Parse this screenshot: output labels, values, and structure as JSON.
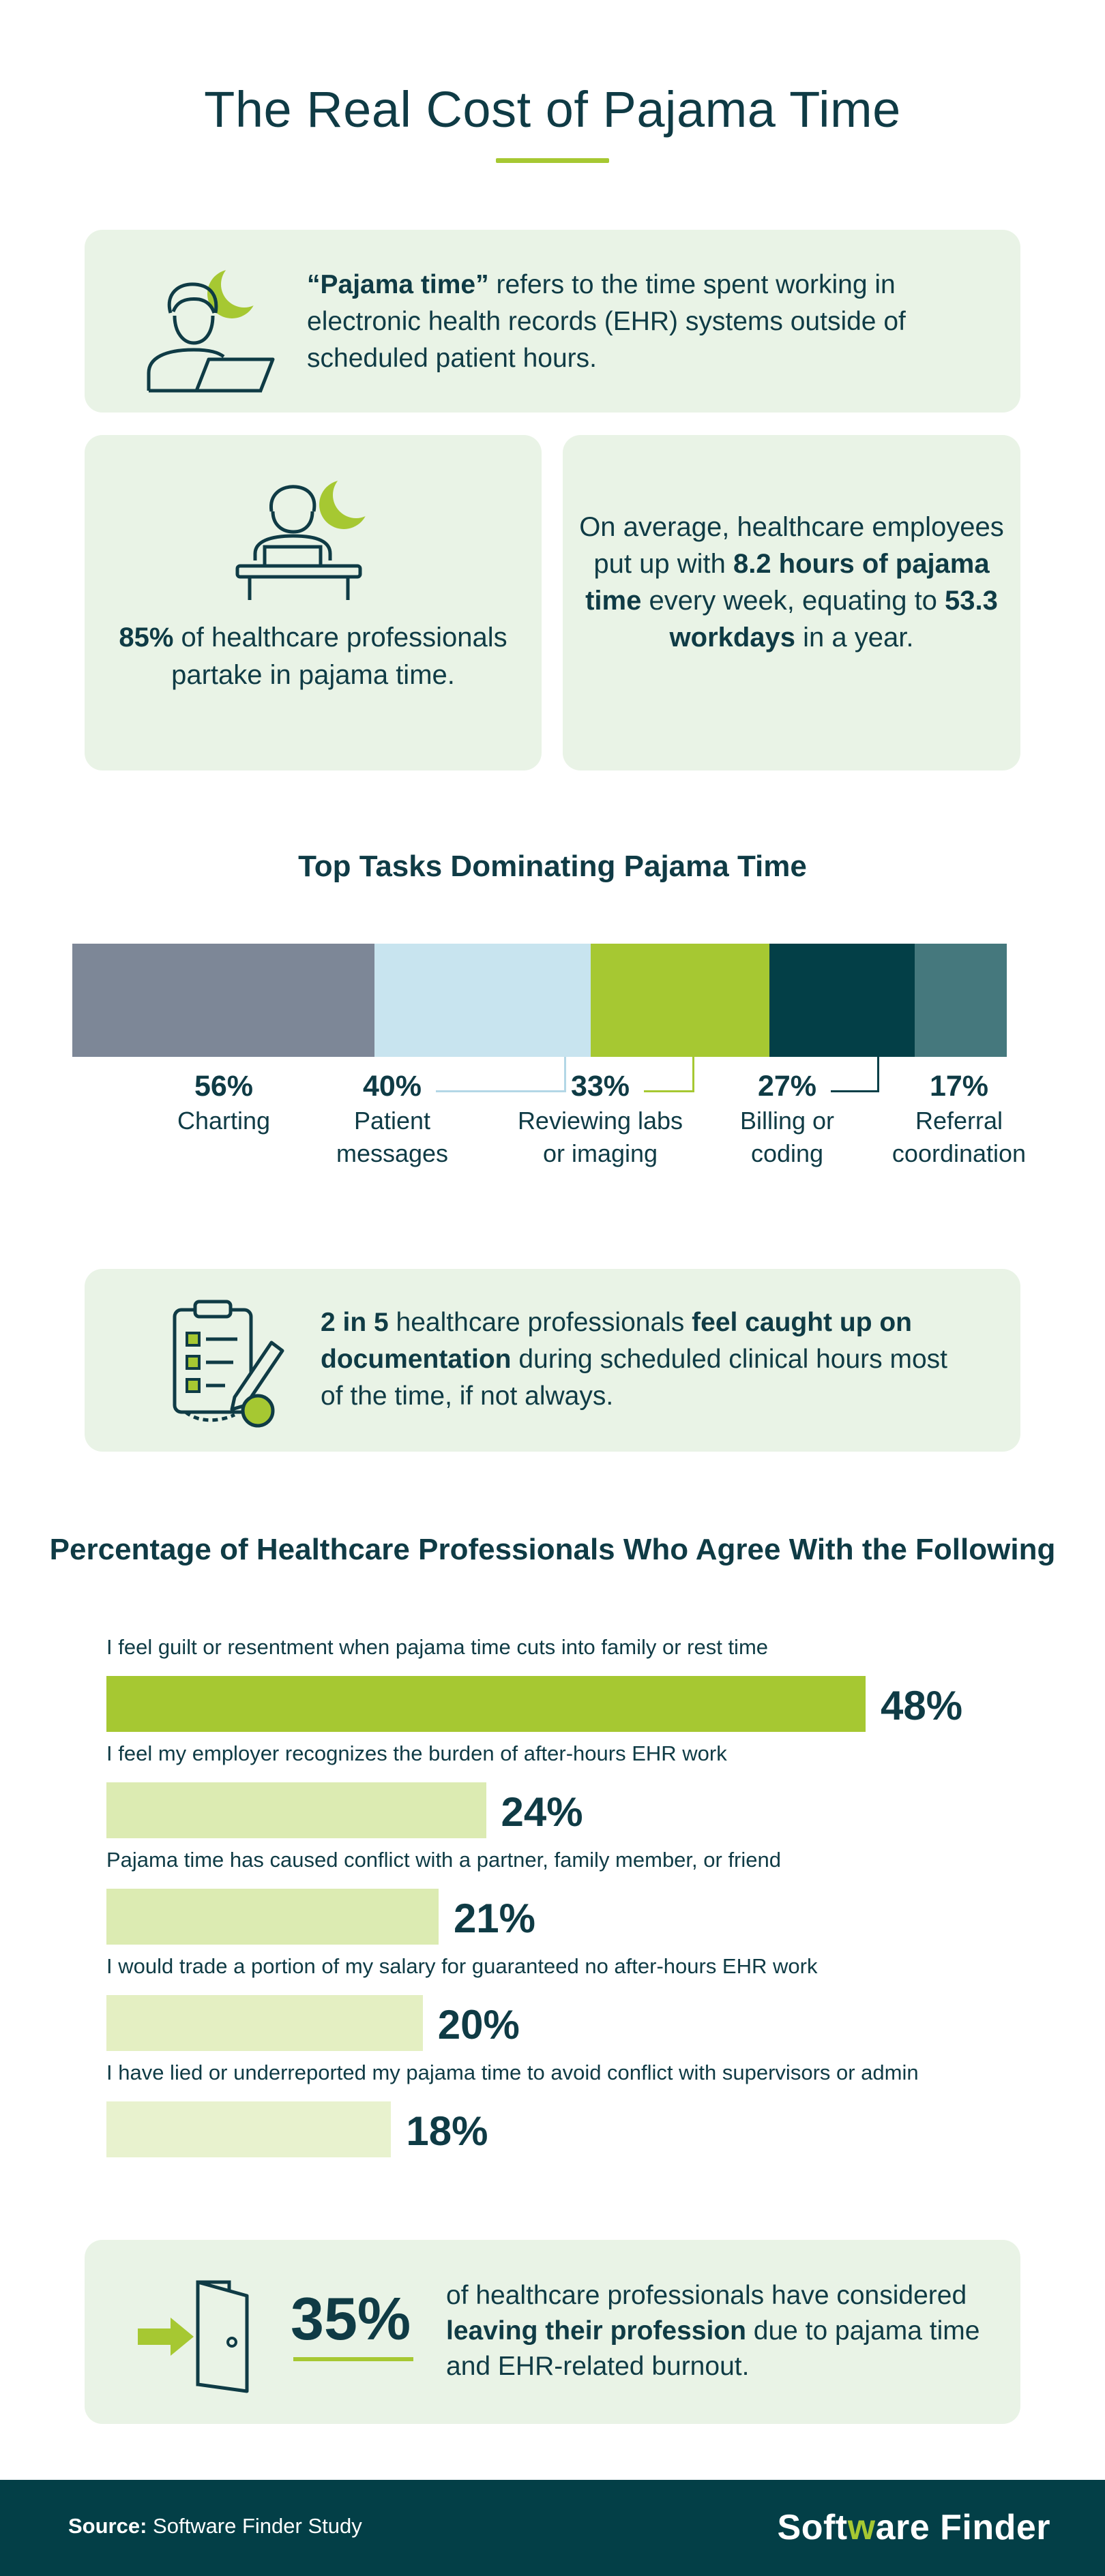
{
  "title": "The Real Cost of Pajama Time",
  "definition": {
    "term": "“Pajama time”",
    "text": " refers to the time spent working in electronic health records (EHR) systems outside of scheduled patient hours."
  },
  "stat_85": {
    "value": "85%",
    "text": " of healthcare professionals partake in pajama time."
  },
  "stat_avg": {
    "part1": "On average, healthcare employees put up with ",
    "bold1": "8.2 hours of pajama time",
    "part2": " every week, equating to ",
    "bold2": "53.3 workdays",
    "part3": " in a year."
  },
  "colors": {
    "green": "#a6c832",
    "dark_teal": "#033f47",
    "card_bg": "#e9f3e6",
    "text": "#0f3b45"
  },
  "doc_stat": {
    "bold1": "2 in 5",
    "part1": " healthcare professionals ",
    "bold2": "feel caught up on documentation",
    "part2": " during scheduled clinical hours most of the time, if not always."
  },
  "leave_stat": {
    "value": "35%",
    "part1": "of healthcare professionals have considered ",
    "bold": "leaving their profession",
    "part2": " due to pajama time and EHR-related burnout."
  },
  "chart_data": [
    {
      "type": "bar",
      "title": "Top Tasks Dominating Pajama Time",
      "categories": [
        "Charting",
        "Patient messages",
        "Reviewing labs or imaging",
        "Billing or coding",
        "Referral coordination"
      ],
      "values": [
        56,
        40,
        33,
        27,
        17
      ],
      "value_labels": [
        "56%",
        "40%",
        "33%",
        "27%",
        "17%"
      ],
      "label_lines": [
        [
          "Charting"
        ],
        [
          "Patient",
          "messages"
        ],
        [
          "Reviewing labs",
          "or imaging"
        ],
        [
          "Billing or",
          "coding"
        ],
        [
          "Referral",
          "coordination"
        ]
      ],
      "colors": [
        "#7d8797",
        "#c8e4ef",
        "#a6c832",
        "#033f47",
        "#45787d"
      ],
      "leader_colors": [
        "#7d8797",
        "#b3d7e6",
        "#a6c832",
        "#033f47",
        "#45787d"
      ],
      "unit": "%"
    },
    {
      "type": "bar",
      "orientation": "horizontal",
      "title": "Percentage of Healthcare Professionals Who Agree With the Following",
      "categories": [
        "I feel guilt or resentment when pajama time cuts into family or rest time",
        "I feel my employer recognizes the burden of after-hours EHR work",
        "Pajama time has caused conflict with a partner, family member, or friend",
        "I would trade a portion of my salary for guaranteed no after-hours EHR work",
        "I have lied or underreported my pajama time to avoid conflict with supervisors or admin"
      ],
      "values": [
        48,
        24,
        21,
        20,
        18
      ],
      "value_labels": [
        "48%",
        "24%",
        "21%",
        "20%",
        "18%"
      ],
      "colors": [
        "#a6c832",
        "#dcebb2",
        "#dcebb2",
        "#e4efc2",
        "#e8f2ce"
      ],
      "xlim": [
        0,
        48
      ]
    }
  ],
  "footer": {
    "source_label": "Source:",
    "source_text": " Software Finder Study",
    "brand_a": "Soft",
    "brand_mark": "w",
    "brand_b": "are Finder"
  }
}
